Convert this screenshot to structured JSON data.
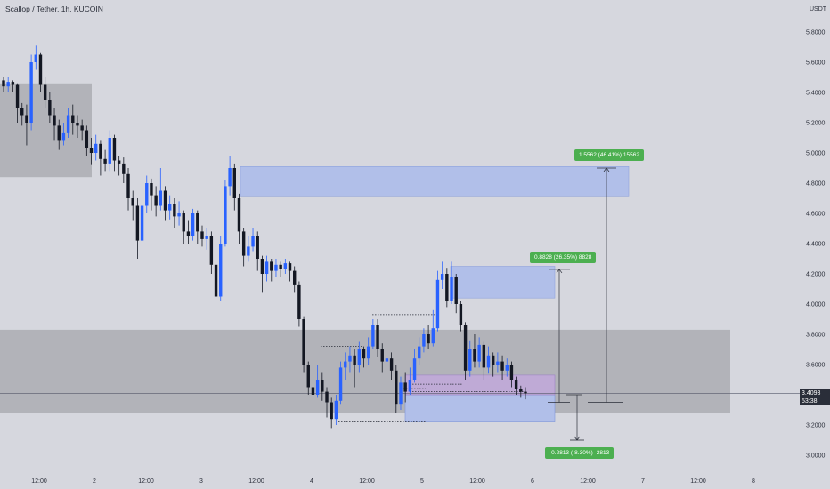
{
  "header": {
    "title": "Scallop / Tether, 1h, KUCOIN",
    "currency": "USDT"
  },
  "colors": {
    "background": "#d6d7de",
    "bull": "#2962ff",
    "bear": "#131722",
    "zone_gray": "#b2b3b9",
    "zone_blue": "#b1bfe9",
    "zone_purple": "#bfaad6",
    "tag_green": "#4caf50"
  },
  "chart_data": {
    "type": "candlestick",
    "exchange": "KUCOIN",
    "symbol": "Scallop / Tether",
    "timeframe": "1h",
    "y_ticks": [
      "5.8000",
      "5.6000",
      "5.4000",
      "5.2000",
      "5.0000",
      "4.8000",
      "4.6000",
      "4.4000",
      "4.2000",
      "4.0000",
      "3.8000",
      "3.6000",
      "3.4000",
      "3.2000",
      "3.0000"
    ],
    "x_ticks": [
      "12:00",
      "2",
      "12:00",
      "3",
      "12:00",
      "4",
      "12:00",
      "5",
      "12:00",
      "6",
      "12:00",
      "7",
      "12:00",
      "8"
    ],
    "current_price": {
      "value": "3.4093",
      "countdown": "53:38"
    },
    "measurements": [
      {
        "label": "1.5562 (46.41%) 15562",
        "from": 3.35,
        "to": 4.9
      },
      {
        "label": "0.8828 (26.35%) 8828",
        "from": 3.35,
        "to": 4.23
      },
      {
        "label": "-0.2813 (-8.30%) -2813",
        "from": 3.4,
        "to": 3.1
      }
    ],
    "candles": [
      [
        5.48,
        5.44,
        5.5,
        5.4
      ],
      [
        5.44,
        5.47,
        5.5,
        5.4
      ],
      [
        5.47,
        5.45,
        5.48,
        5.4
      ],
      [
        5.45,
        5.3,
        5.46,
        5.2
      ],
      [
        5.3,
        5.25,
        5.33,
        5.18
      ],
      [
        5.25,
        5.2,
        5.32,
        5.05
      ],
      [
        5.2,
        5.6,
        5.65,
        5.15
      ],
      [
        5.6,
        5.65,
        5.71,
        5.55
      ],
      [
        5.65,
        5.45,
        5.66,
        5.4
      ],
      [
        5.45,
        5.35,
        5.5,
        5.3
      ],
      [
        5.35,
        5.25,
        5.4,
        5.2
      ],
      [
        5.25,
        5.18,
        5.3,
        5.08
      ],
      [
        5.18,
        5.08,
        5.22,
        5.02
      ],
      [
        5.08,
        5.13,
        5.2,
        5.05
      ],
      [
        5.13,
        5.25,
        5.3,
        5.1
      ],
      [
        5.25,
        5.2,
        5.32,
        5.12
      ],
      [
        5.2,
        5.18,
        5.25,
        5.1
      ],
      [
        5.18,
        5.15,
        5.22,
        5.08
      ],
      [
        5.15,
        5.03,
        5.18,
        4.98
      ],
      [
        5.03,
        5.0,
        5.1,
        4.92
      ],
      [
        5.0,
        5.06,
        5.12,
        4.95
      ],
      [
        5.06,
        4.96,
        5.08,
        4.85
      ],
      [
        4.96,
        4.93,
        5.02,
        4.88
      ],
      [
        4.93,
        5.1,
        5.15,
        4.88
      ],
      [
        5.1,
        4.95,
        5.12,
        4.88
      ],
      [
        4.95,
        4.93,
        4.98,
        4.85
      ],
      [
        4.93,
        4.86,
        4.97,
        4.8
      ],
      [
        4.86,
        4.7,
        4.9,
        4.62
      ],
      [
        4.7,
        4.65,
        4.75,
        4.55
      ],
      [
        4.65,
        4.42,
        4.7,
        4.3
      ],
      [
        4.42,
        4.65,
        4.7,
        4.38
      ],
      [
        4.65,
        4.8,
        4.85,
        4.6
      ],
      [
        4.8,
        4.72,
        4.83,
        4.62
      ],
      [
        4.72,
        4.65,
        4.78,
        4.58
      ],
      [
        4.65,
        4.75,
        4.9,
        4.62
      ],
      [
        4.75,
        4.62,
        4.78,
        4.55
      ],
      [
        4.62,
        4.66,
        4.72,
        4.56
      ],
      [
        4.66,
        4.58,
        4.7,
        4.5
      ],
      [
        4.58,
        4.6,
        4.68,
        4.52
      ],
      [
        4.6,
        4.48,
        4.62,
        4.4
      ],
      [
        4.48,
        4.45,
        4.55,
        4.4
      ],
      [
        4.45,
        4.6,
        4.63,
        4.42
      ],
      [
        4.6,
        4.48,
        4.62,
        4.4
      ],
      [
        4.48,
        4.43,
        4.52,
        4.38
      ],
      [
        4.43,
        4.45,
        4.5,
        4.36
      ],
      [
        4.45,
        4.26,
        4.48,
        4.2
      ],
      [
        4.26,
        4.05,
        4.3,
        4.0
      ],
      [
        4.05,
        4.4,
        4.45,
        4.02
      ],
      [
        4.4,
        4.78,
        4.82,
        4.38
      ],
      [
        4.78,
        4.9,
        4.98,
        4.72
      ],
      [
        4.9,
        4.7,
        4.93,
        4.62
      ],
      [
        4.7,
        4.48,
        4.73,
        4.4
      ],
      [
        4.48,
        4.32,
        4.5,
        4.25
      ],
      [
        4.32,
        4.38,
        4.45,
        4.28
      ],
      [
        4.38,
        4.45,
        4.5,
        4.35
      ],
      [
        4.45,
        4.3,
        4.48,
        4.22
      ],
      [
        4.3,
        4.2,
        4.32,
        4.08
      ],
      [
        4.2,
        4.28,
        4.32,
        4.15
      ],
      [
        4.28,
        4.22,
        4.3,
        4.15
      ],
      [
        4.22,
        4.26,
        4.3,
        4.18
      ],
      [
        4.26,
        4.23,
        4.28,
        4.18
      ],
      [
        4.23,
        4.27,
        4.3,
        4.2
      ],
      [
        4.27,
        4.22,
        4.28,
        4.15
      ],
      [
        4.22,
        4.13,
        4.25,
        4.08
      ],
      [
        4.13,
        3.9,
        4.15,
        3.85
      ],
      [
        3.9,
        3.6,
        3.92,
        3.55
      ],
      [
        3.6,
        3.45,
        3.62,
        3.4
      ],
      [
        3.45,
        3.4,
        3.55,
        3.35
      ],
      [
        3.4,
        3.5,
        3.6,
        3.38
      ],
      [
        3.5,
        3.42,
        3.55,
        3.36
      ],
      [
        3.42,
        3.35,
        3.45,
        3.25
      ],
      [
        3.35,
        3.24,
        3.38,
        3.18
      ],
      [
        3.24,
        3.36,
        3.4,
        3.2
      ],
      [
        3.36,
        3.58,
        3.62,
        3.34
      ],
      [
        3.58,
        3.62,
        3.68,
        3.5
      ],
      [
        3.62,
        3.66,
        3.72,
        3.55
      ],
      [
        3.66,
        3.6,
        3.7,
        3.45
      ],
      [
        3.6,
        3.7,
        3.75,
        3.55
      ],
      [
        3.7,
        3.64,
        3.72,
        3.58
      ],
      [
        3.64,
        3.72,
        3.78,
        3.6
      ],
      [
        3.72,
        3.86,
        3.9,
        3.7
      ],
      [
        3.86,
        3.7,
        3.9,
        3.65
      ],
      [
        3.7,
        3.62,
        3.74,
        3.55
      ],
      [
        3.62,
        3.64,
        3.7,
        3.55
      ],
      [
        3.64,
        3.56,
        3.68,
        3.5
      ],
      [
        3.56,
        3.34,
        3.6,
        3.28
      ],
      [
        3.34,
        3.48,
        3.52,
        3.3
      ],
      [
        3.48,
        3.42,
        3.55,
        3.35
      ],
      [
        3.42,
        3.5,
        3.58,
        3.4
      ],
      [
        3.5,
        3.64,
        3.7,
        3.48
      ],
      [
        3.64,
        3.72,
        3.78,
        3.6
      ],
      [
        3.72,
        3.8,
        3.84,
        3.68
      ],
      [
        3.8,
        3.74,
        3.86,
        3.7
      ],
      [
        3.74,
        3.84,
        3.96,
        3.72
      ],
      [
        3.84,
        4.16,
        4.22,
        3.82
      ],
      [
        4.16,
        4.2,
        4.28,
        4.1
      ],
      [
        4.2,
        4.02,
        4.24,
        3.98
      ],
      [
        4.02,
        4.18,
        4.28,
        4.0
      ],
      [
        4.18,
        4.0,
        4.2,
        3.94
      ],
      [
        4.0,
        3.86,
        4.02,
        3.82
      ],
      [
        3.86,
        3.56,
        3.88,
        3.5
      ],
      [
        3.56,
        3.7,
        3.76,
        3.52
      ],
      [
        3.7,
        3.62,
        3.8,
        3.58
      ],
      [
        3.62,
        3.73,
        3.78,
        3.58
      ],
      [
        3.73,
        3.58,
        3.75,
        3.5
      ],
      [
        3.58,
        3.66,
        3.72,
        3.54
      ],
      [
        3.66,
        3.6,
        3.68,
        3.52
      ],
      [
        3.6,
        3.62,
        3.68,
        3.55
      ],
      [
        3.62,
        3.56,
        3.66,
        3.5
      ],
      [
        3.56,
        3.6,
        3.64,
        3.52
      ],
      [
        3.6,
        3.5,
        3.62,
        3.45
      ],
      [
        3.5,
        3.44,
        3.52,
        3.4
      ],
      [
        3.44,
        3.42,
        3.46,
        3.38
      ],
      [
        3.42,
        3.41,
        3.45,
        3.37
      ]
    ]
  }
}
